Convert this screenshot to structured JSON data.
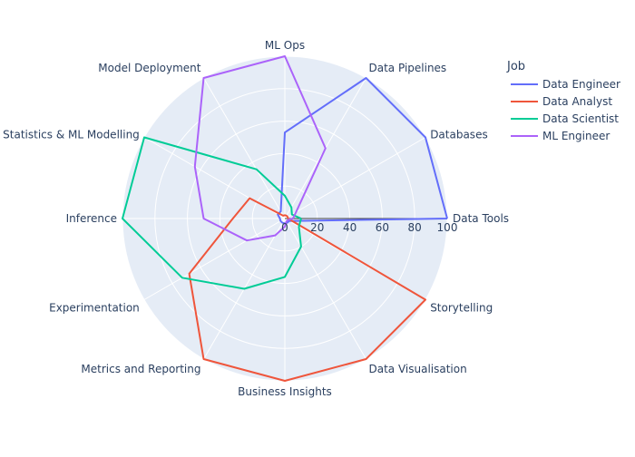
{
  "chart_data": {
    "type": "radar",
    "axes": [
      "Data Tools",
      "Databases",
      "Data Pipelines",
      "ML Ops",
      "Model Deployment",
      "Statistics & ML Modelling",
      "Inference",
      "Experimentation",
      "Metrics and Reporting",
      "Business Insights",
      "Data Visualisation",
      "Storytelling"
    ],
    "radial_range": [
      0,
      100
    ],
    "radial_ticks": [
      "0",
      "20",
      "40",
      "60",
      "80",
      "100"
    ],
    "radial_tick_values": [
      0,
      20,
      40,
      60,
      80,
      100
    ],
    "legend_title": "Job",
    "legend_position": "top-right",
    "grid": true,
    "background_color": "#e5ecf6",
    "series": [
      {
        "name": "Data Engineer",
        "color": "#636efa",
        "values": [
          100,
          100,
          100,
          53,
          5,
          5,
          3,
          3,
          3,
          3,
          3,
          3
        ]
      },
      {
        "name": "Data Analyst",
        "color": "#ef553b",
        "values": [
          2,
          2,
          2,
          2,
          2,
          25,
          32,
          68,
          100,
          100,
          100,
          100
        ]
      },
      {
        "name": "Data Scientist",
        "color": "#00cc96",
        "values": [
          10,
          5,
          8,
          14,
          35,
          100,
          100,
          73,
          50,
          36,
          20,
          10
        ]
      },
      {
        "name": "ML Engineer",
        "color": "#ab63fa",
        "values": [
          5,
          8,
          50,
          100,
          100,
          64,
          50,
          27,
          12,
          5,
          2,
          2
        ]
      }
    ]
  }
}
